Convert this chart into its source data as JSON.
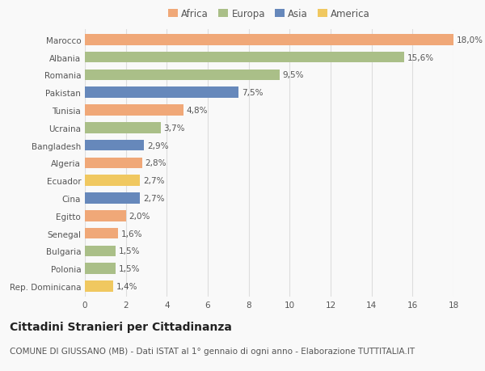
{
  "countries": [
    "Marocco",
    "Albania",
    "Romania",
    "Pakistan",
    "Tunisia",
    "Ucraina",
    "Bangladesh",
    "Algeria",
    "Ecuador",
    "Cina",
    "Egitto",
    "Senegal",
    "Bulgaria",
    "Polonia",
    "Rep. Dominicana"
  ],
  "values": [
    18.0,
    15.6,
    9.5,
    7.5,
    4.8,
    3.7,
    2.9,
    2.8,
    2.7,
    2.7,
    2.0,
    1.6,
    1.5,
    1.5,
    1.4
  ],
  "labels": [
    "18,0%",
    "15,6%",
    "9,5%",
    "7,5%",
    "4,8%",
    "3,7%",
    "2,9%",
    "2,8%",
    "2,7%",
    "2,7%",
    "2,0%",
    "1,6%",
    "1,5%",
    "1,5%",
    "1,4%"
  ],
  "continents": [
    "Africa",
    "Europa",
    "Europa",
    "Asia",
    "Africa",
    "Europa",
    "Asia",
    "Africa",
    "America",
    "Asia",
    "Africa",
    "Africa",
    "Europa",
    "Europa",
    "America"
  ],
  "colors": {
    "Africa": "#F0A878",
    "Europa": "#AABF88",
    "Asia": "#6688BB",
    "America": "#F0C860"
  },
  "legend_order": [
    "Africa",
    "Europa",
    "Asia",
    "America"
  ],
  "title": "Cittadini Stranieri per Cittadinanza",
  "subtitle": "COMUNE DI GIUSSANO (MB) - Dati ISTAT al 1° gennaio di ogni anno - Elaborazione TUTTITALIA.IT",
  "xlim": [
    0,
    18
  ],
  "xticks": [
    0,
    2,
    4,
    6,
    8,
    10,
    12,
    14,
    16,
    18
  ],
  "background_color": "#f9f9f9",
  "bar_height": 0.62,
  "title_fontsize": 10,
  "subtitle_fontsize": 7.5,
  "label_fontsize": 7.5,
  "tick_fontsize": 7.5,
  "legend_fontsize": 8.5
}
